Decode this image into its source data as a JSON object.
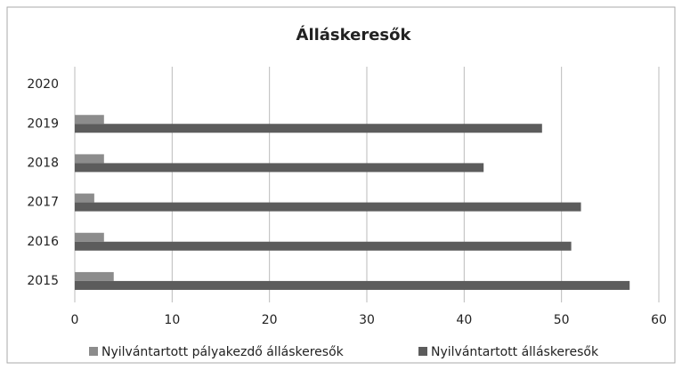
{
  "chart_data": {
    "type": "bar",
    "orientation": "horizontal",
    "title": "Álláskeresők",
    "categories": [
      "2015",
      "2016",
      "2017",
      "2018",
      "2019",
      "2020"
    ],
    "series": [
      {
        "name": "Nyilvántartott pályakezdő álláskeresők",
        "color": "#8c8c8c",
        "values": [
          4,
          3,
          2,
          3,
          3,
          null
        ]
      },
      {
        "name": "Nyilvántartott álláskeresők",
        "color": "#5c5c5c",
        "values": [
          57,
          51,
          52,
          42,
          48,
          null
        ]
      }
    ],
    "xlim": [
      0,
      60
    ],
    "xticks": [
      0,
      10,
      20,
      30,
      40,
      50,
      60
    ],
    "grid": true,
    "legend": "bottom"
  }
}
